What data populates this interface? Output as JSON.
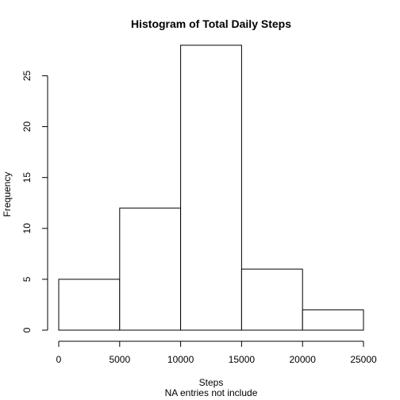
{
  "chart_data": {
    "type": "bar",
    "title": "Histogram of Total Daily Steps",
    "xlabel": "Steps",
    "subtitle": "NA entries not include",
    "ylabel": "Frequency",
    "bins": [
      {
        "from": 0,
        "to": 5000,
        "count": 5
      },
      {
        "from": 5000,
        "to": 10000,
        "count": 12
      },
      {
        "from": 10000,
        "to": 15000,
        "count": 28
      },
      {
        "from": 15000,
        "to": 20000,
        "count": 6
      },
      {
        "from": 20000,
        "to": 25000,
        "count": 2
      }
    ],
    "x_ticks": [
      0,
      5000,
      10000,
      15000,
      20000,
      25000
    ],
    "x_tick_labels": [
      "0",
      "5000",
      "10000",
      "15000",
      "20000",
      "25000"
    ],
    "y_ticks": [
      0,
      5,
      10,
      15,
      20,
      25
    ],
    "y_tick_labels": [
      "0",
      "5",
      "10",
      "15",
      "20",
      "25"
    ],
    "xlim": [
      0,
      25000
    ],
    "ylim": [
      0,
      28
    ],
    "grid": false,
    "colors": {
      "bar_fill": "#ffffff",
      "bar_stroke": "#000000"
    }
  }
}
